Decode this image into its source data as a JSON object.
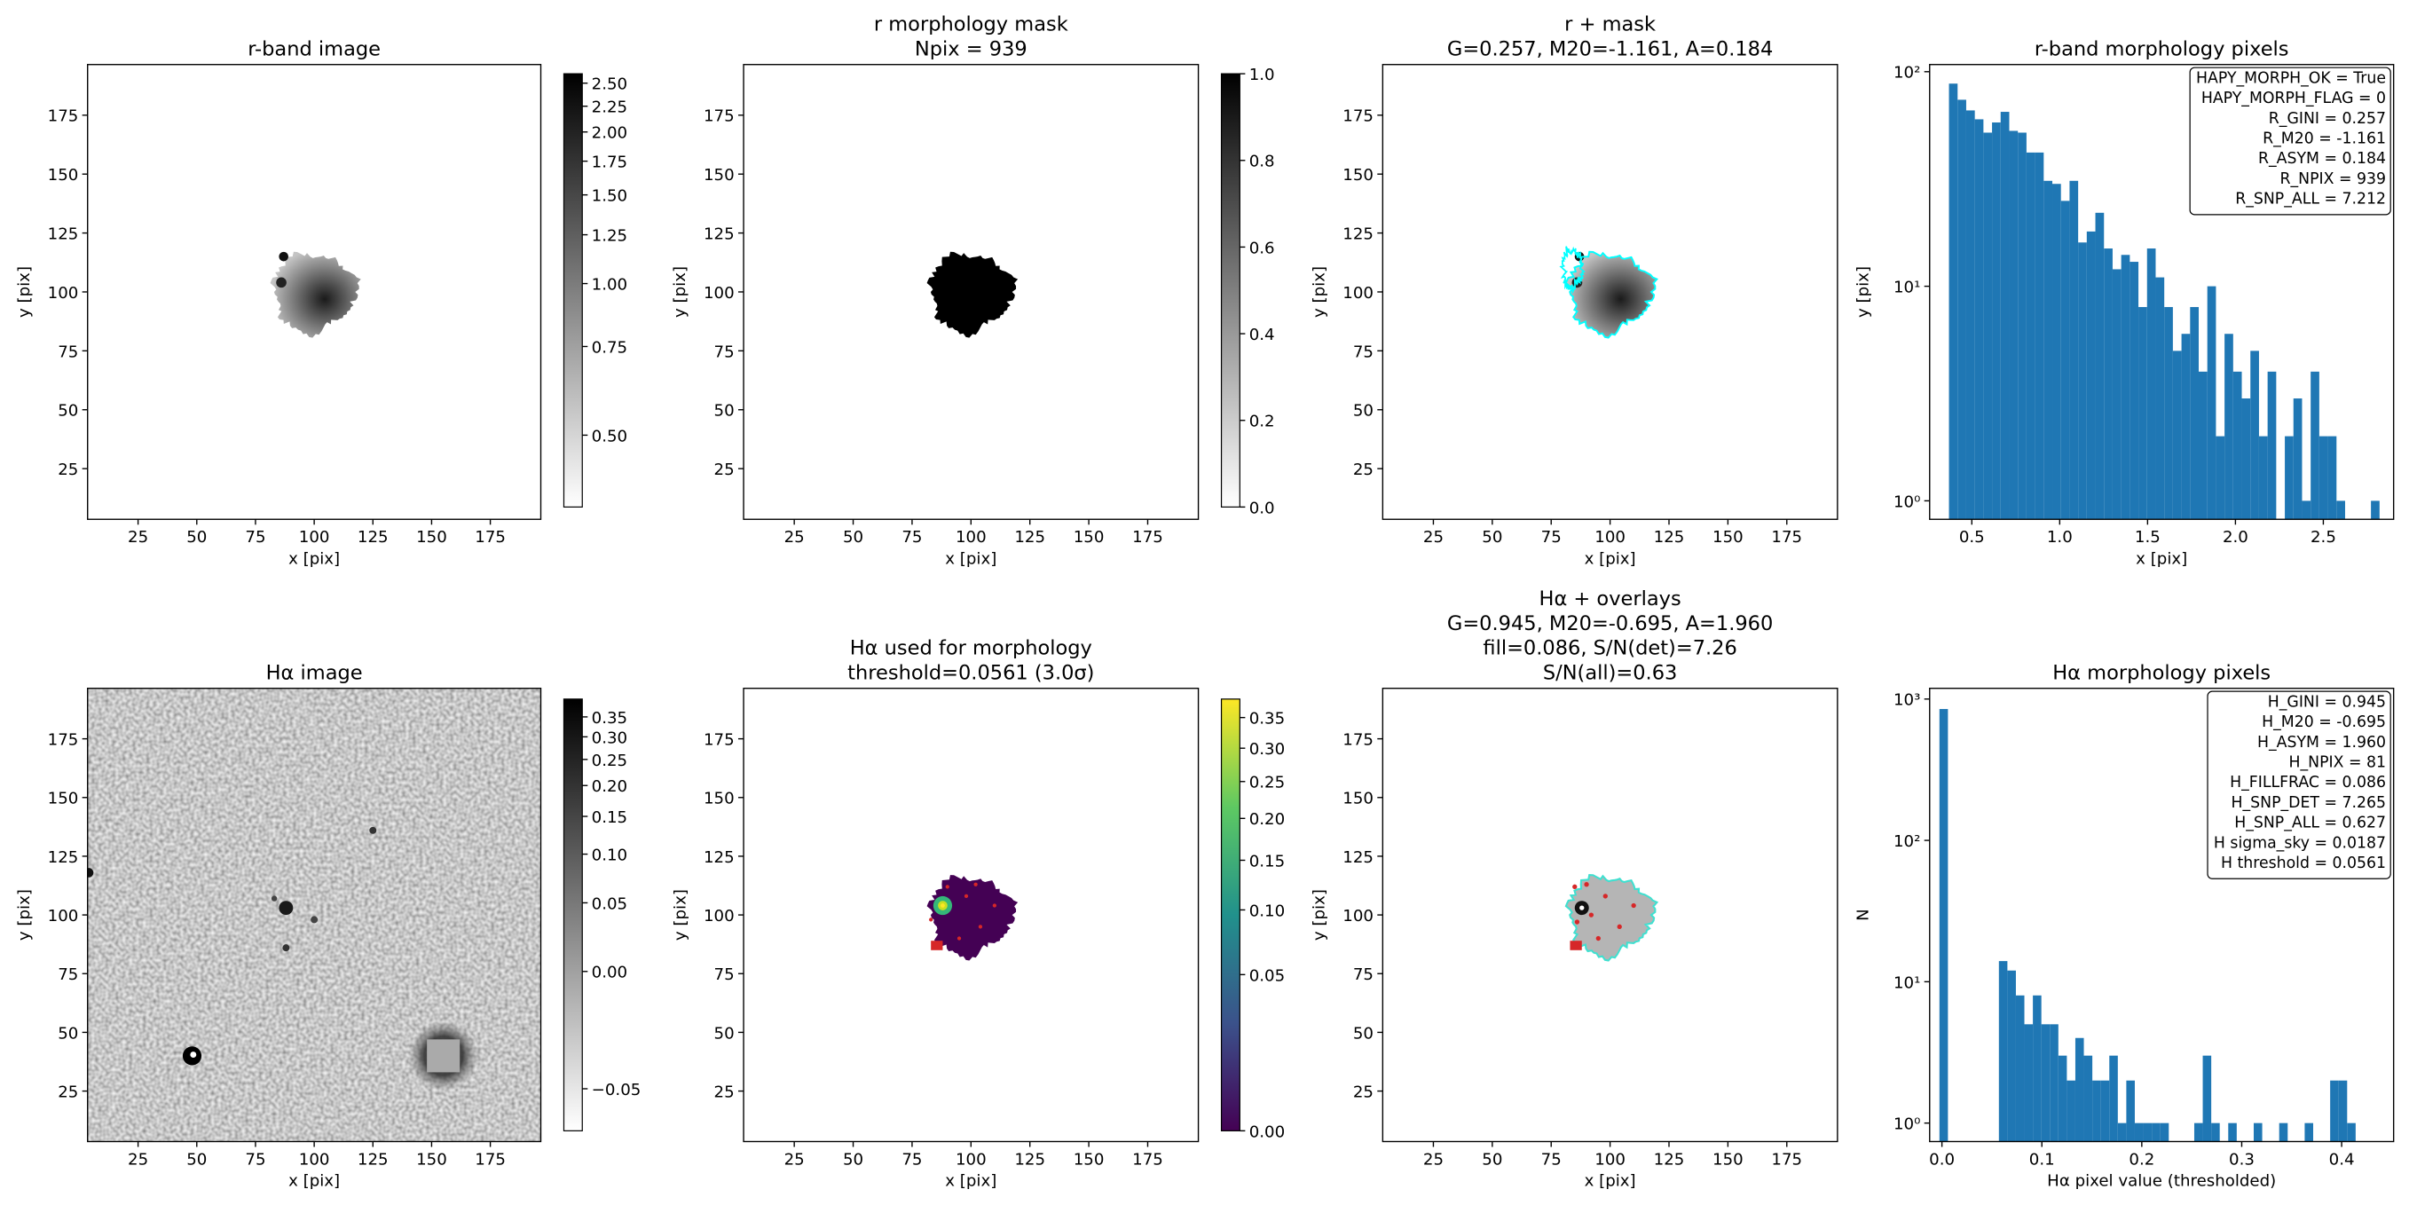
{
  "chart_data": [
    {
      "type": "image",
      "title": [
        "r-band image"
      ],
      "xlabel": "x [pix]",
      "ylabel": "y [pix]",
      "xlim": [
        3.5,
        196.5
      ],
      "ylim": [
        3.5,
        196.5
      ],
      "xticks": [
        25,
        50,
        75,
        100,
        125,
        150,
        175
      ],
      "yticks": [
        25,
        50,
        75,
        100,
        125,
        150,
        175
      ],
      "colorbar": {
        "scale": "log",
        "cmap": "gray_r",
        "lim": [
          0.36,
          2.61
        ],
        "ticks": [
          {
            "value": 0.5,
            "label": "0.50"
          },
          0.75,
          {
            "value": 1,
            "label": "1.00"
          },
          1.25,
          {
            "value": 1.5,
            "label": "1.50"
          },
          1.75,
          {
            "value": 2,
            "label": "2.00"
          },
          2.25,
          {
            "value": 2.5,
            "label": "2.50"
          }
        ]
      }
    },
    {
      "type": "image",
      "title": [
        "r morphology mask",
        "Npix = 939"
      ],
      "xlabel": "x [pix]",
      "ylabel": "y [pix]",
      "xlim": [
        3.5,
        196.5
      ],
      "ylim": [
        3.5,
        196.5
      ],
      "xticks": [
        25,
        50,
        75,
        100,
        125,
        150,
        175
      ],
      "yticks": [
        25,
        50,
        75,
        100,
        125,
        150,
        175
      ],
      "colorbar": {
        "scale": "linear",
        "cmap": "gray_r",
        "lim": [
          0,
          1
        ],
        "ticks": [
          {
            "value": 0,
            "label": "0.0"
          },
          0.2,
          0.4,
          0.6,
          0.8,
          {
            "value": 1,
            "label": "1.0"
          }
        ]
      }
    },
    {
      "type": "image",
      "title": [
        "r + mask",
        "G=0.257, M20=-1.161, A=0.184"
      ],
      "xlabel": "x [pix]",
      "ylabel": "y [pix]",
      "xlim": [
        3.5,
        196.5
      ],
      "ylim": [
        3.5,
        196.5
      ],
      "xticks": [
        25,
        50,
        75,
        100,
        125,
        150,
        175
      ],
      "yticks": [
        25,
        50,
        75,
        100,
        125,
        150,
        175
      ]
    },
    {
      "type": "histogram",
      "title": [
        "r-band morphology pixels"
      ],
      "xlabel": "x [pix]",
      "ylabel": "y [pix]",
      "color": "#1f77b4",
      "log_y": true,
      "bins": [
        0.37,
        0.419,
        0.468,
        0.517,
        0.566,
        0.615,
        0.664,
        0.713,
        0.762,
        0.811,
        0.86,
        0.909,
        0.958,
        1.007,
        1.056,
        1.105,
        1.154,
        1.203,
        1.252,
        1.301,
        1.35,
        1.399,
        1.448,
        1.497,
        1.546,
        1.595,
        1.644,
        1.693,
        1.742,
        1.791,
        1.84,
        1.889,
        1.938,
        1.987,
        2.036,
        2.085,
        2.134,
        2.183,
        2.232,
        2.281,
        2.33,
        2.379,
        2.428,
        2.477,
        2.526,
        2.575,
        2.624,
        2.673,
        2.722,
        2.771,
        2.82
      ],
      "values": [
        88,
        74,
        66,
        60,
        52,
        58,
        65,
        53,
        52,
        42,
        42,
        31,
        30,
        25,
        31,
        16,
        18,
        22,
        15,
        12,
        14,
        13,
        8,
        15,
        11,
        8,
        5,
        6,
        8,
        4,
        10,
        2,
        6,
        4,
        3,
        5,
        2,
        4,
        0,
        2,
        3,
        1,
        4,
        2,
        2,
        1,
        0,
        0,
        0,
        1
      ],
      "xlim": [
        0.26,
        2.9
      ],
      "xticks": [
        0.5,
        {
          "value": 1,
          "label": "1.0"
        },
        1.5,
        {
          "value": 2,
          "label": "2.0"
        },
        2.5
      ],
      "ylim": [
        0.82,
        108
      ],
      "yticks": [
        {
          "value": 1,
          "label": "10⁰"
        },
        {
          "value": 10,
          "label": "10¹"
        },
        {
          "value": 100,
          "label": "10²"
        }
      ],
      "annotation": [
        "HAPY_MORPH_OK = True",
        "HAPY_MORPH_FLAG = 0",
        "R_GINI = 0.257",
        "R_M20 = -1.161",
        "R_ASYM = 0.184",
        "R_NPIX = 939",
        "R_SNP_ALL = 7.212"
      ]
    },
    {
      "type": "image",
      "title": [
        "Hα image"
      ],
      "xlabel": "x [pix]",
      "ylabel": "y [pix]",
      "xlim": [
        3.5,
        196.5
      ],
      "ylim": [
        3.5,
        196.5
      ],
      "xticks": [
        25,
        50,
        75,
        100,
        125,
        150,
        175
      ],
      "yticks": [
        25,
        50,
        75,
        100,
        125,
        150,
        175
      ],
      "colorbar": {
        "scale": "log-offset",
        "cmap": "gray_r",
        "lim": [
          -0.061,
          0.4
        ],
        "ticks": [
          {
            "value": -0.05,
            "label": "−0.05"
          },
          {
            "value": 0,
            "label": "0.00"
          },
          0.05,
          {
            "value": 0.1,
            "label": "0.10"
          },
          0.15,
          {
            "value": 0.2,
            "label": "0.20"
          },
          0.25,
          {
            "value": 0.3,
            "label": "0.30"
          },
          0.35
        ]
      }
    },
    {
      "type": "image",
      "title": [
        "Hα used for morphology",
        "threshold=0.0561 (3.0σ)"
      ],
      "xlabel": "x [pix]",
      "ylabel": "y [pix]",
      "xlim": [
        3.5,
        196.5
      ],
      "ylim": [
        3.5,
        196.5
      ],
      "xticks": [
        25,
        50,
        75,
        100,
        125,
        150,
        175
      ],
      "yticks": [
        25,
        50,
        75,
        100,
        125,
        150,
        175
      ],
      "colorbar": {
        "scale": "sqrt",
        "cmap": "viridis",
        "lim": [
          0,
          0.382
        ],
        "ticks": [
          {
            "value": 0,
            "label": "0.00"
          },
          0.05,
          {
            "value": 0.1,
            "label": "0.10"
          },
          0.15,
          {
            "value": 0.2,
            "label": "0.20"
          },
          0.25,
          {
            "value": 0.3,
            "label": "0.30"
          },
          0.35
        ]
      }
    },
    {
      "type": "image",
      "title": [
        "Hα + overlays",
        "G=0.945, M20=-0.695, A=1.960",
        "fill=0.086, S/N(det)=7.26",
        "S/N(all)=0.63"
      ],
      "xlabel": "x [pix]",
      "ylabel": "y [pix]",
      "xlim": [
        3.5,
        196.5
      ],
      "ylim": [
        3.5,
        196.5
      ],
      "xticks": [
        25,
        50,
        75,
        100,
        125,
        150,
        175
      ],
      "yticks": [
        25,
        50,
        75,
        100,
        125,
        150,
        175
      ]
    },
    {
      "type": "histogram",
      "title": [
        "Hα morphology pixels"
      ],
      "xlabel": "Hα pixel value (thresholded)",
      "ylabel": "N",
      "color": "#1f77b4",
      "log_y": true,
      "bins": [
        -0.0025,
        0.006,
        0.0145,
        0.023,
        0.0315,
        0.04,
        0.0485,
        0.057,
        0.0655,
        0.074,
        0.0825,
        0.091,
        0.0995,
        0.108,
        0.1165,
        0.125,
        0.1335,
        0.142,
        0.1505,
        0.159,
        0.1675,
        0.176,
        0.1845,
        0.193,
        0.2015,
        0.21,
        0.2185,
        0.227,
        0.2355,
        0.244,
        0.2525,
        0.261,
        0.2695,
        0.278,
        0.2865,
        0.295,
        0.3035,
        0.312,
        0.3205,
        0.329,
        0.3375,
        0.346,
        0.3545,
        0.363,
        0.3715,
        0.38,
        0.3885,
        0.397,
        0.4055,
        0.414,
        0.4225,
        0.431,
        0.4395
      ],
      "values": [
        850,
        0,
        0,
        0,
        0,
        0,
        0,
        14,
        12,
        8,
        5,
        8,
        5,
        5,
        3,
        2,
        4,
        3,
        2,
        2,
        3,
        1,
        2,
        1,
        1,
        1,
        1,
        0,
        0,
        0,
        1,
        3,
        1,
        0,
        1,
        0,
        0,
        1,
        0,
        0,
        1,
        0,
        0,
        1,
        0,
        0,
        2,
        2,
        1,
        0,
        0,
        0
      ],
      "xlim": [
        -0.0123,
        0.452
      ],
      "xticks": [
        {
          "value": 0,
          "label": "0.0"
        },
        0.1,
        0.2,
        0.3,
        0.4
      ],
      "ylim": [
        0.74,
        1191
      ],
      "yticks": [
        {
          "value": 1,
          "label": "10⁰"
        },
        {
          "value": 10,
          "label": "10¹"
        },
        {
          "value": 100,
          "label": "10²"
        },
        {
          "value": 1000,
          "label": "10³"
        }
      ],
      "annotation": [
        "H_GINI = 0.945",
        "H_M20 = -0.695",
        "H_ASYM = 1.960",
        "H_NPIX = 81",
        "H_FILLFRAC = 0.086",
        "H_SNP_DET = 7.265",
        "H_SNP_ALL = 0.627",
        "H sigma_sky = 0.0187",
        "H threshold = 0.0561"
      ]
    }
  ]
}
